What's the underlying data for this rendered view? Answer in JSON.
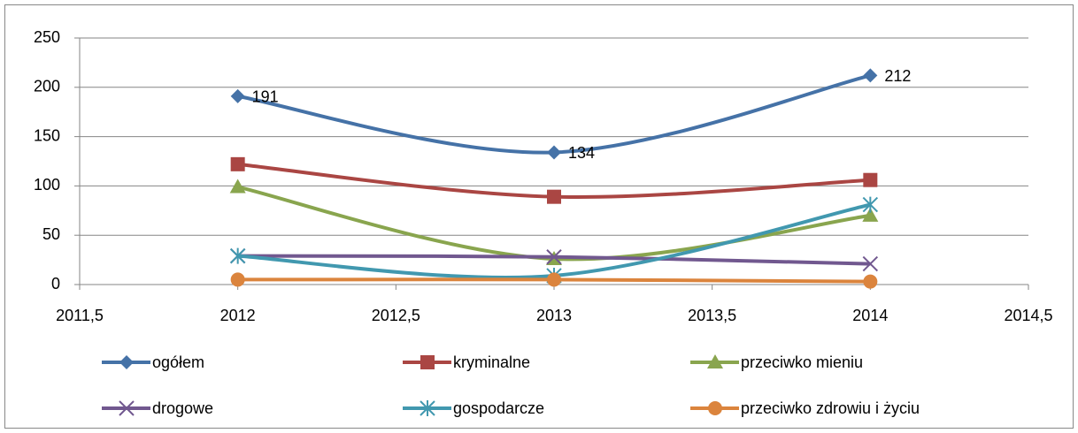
{
  "chart_data": {
    "type": "line",
    "smooth": true,
    "x": [
      2012,
      2013,
      2014
    ],
    "xlim": [
      2011.5,
      2014.5
    ],
    "xticks": [
      {
        "value": 2011.5,
        "label": "2011,5"
      },
      2012,
      {
        "value": 2012.5,
        "label": "2012,5"
      },
      2013,
      {
        "value": 2013.5,
        "label": "2013,5"
      },
      2014,
      {
        "value": 2014.5,
        "label": "2014,5"
      }
    ],
    "ylim": [
      0,
      250
    ],
    "yticks": [
      0,
      50,
      100,
      150,
      200,
      250
    ],
    "grid": true,
    "legend": "bottom",
    "series": [
      {
        "name": "ogółem",
        "color": "#4572a7",
        "marker": "diamond",
        "data_labels": true,
        "values": [
          191,
          134,
          212
        ]
      },
      {
        "name": "kryminalne",
        "color": "#aa4643",
        "marker": "square",
        "values": [
          122,
          89,
          106
        ]
      },
      {
        "name": "przeciwko mieniu",
        "color": "#89a54e",
        "marker": "triangle",
        "values": [
          99,
          26,
          70
        ]
      },
      {
        "name": "drogowe",
        "color": "#71588f",
        "marker": "x",
        "values": [
          29,
          28,
          21
        ]
      },
      {
        "name": "gospodarcze",
        "color": "#4198af",
        "marker": "star",
        "values": [
          29,
          9,
          81
        ]
      },
      {
        "name": "przeciwko zdrowiu i życiu",
        "color": "#db843d",
        "marker": "circle",
        "values": [
          5,
          5,
          3
        ]
      }
    ]
  }
}
